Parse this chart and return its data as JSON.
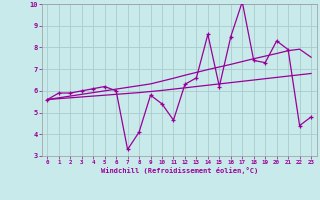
{
  "xlabel": "Windchill (Refroidissement éolien,°C)",
  "bg_color": "#c8eaea",
  "grid_color": "#aacccc",
  "line_color": "#990099",
  "x": [
    0,
    1,
    2,
    3,
    4,
    5,
    6,
    7,
    8,
    9,
    10,
    11,
    12,
    13,
    14,
    15,
    16,
    17,
    18,
    19,
    20,
    21,
    22,
    23
  ],
  "y_main": [
    5.6,
    5.9,
    5.9,
    6.0,
    6.1,
    6.2,
    6.0,
    3.3,
    4.1,
    5.8,
    5.4,
    4.65,
    6.3,
    6.6,
    8.6,
    6.2,
    8.5,
    10.1,
    7.4,
    7.3,
    8.3,
    7.9,
    4.4,
    4.8
  ],
  "y_trend1": [
    5.6,
    5.68,
    5.76,
    5.84,
    5.92,
    6.0,
    6.08,
    6.16,
    6.24,
    6.32,
    6.45,
    6.58,
    6.72,
    6.85,
    6.98,
    7.1,
    7.22,
    7.35,
    7.48,
    7.6,
    7.72,
    7.85,
    7.92,
    7.55
  ],
  "y_trend2": [
    5.6,
    5.64,
    5.68,
    5.72,
    5.76,
    5.8,
    5.84,
    5.88,
    5.92,
    5.97,
    6.02,
    6.08,
    6.14,
    6.2,
    6.26,
    6.32,
    6.38,
    6.44,
    6.5,
    6.56,
    6.62,
    6.68,
    6.74,
    6.8
  ],
  "ylim": [
    3,
    10
  ],
  "xlim": [
    -0.5,
    23.5
  ],
  "yticks": [
    3,
    4,
    5,
    6,
    7,
    8,
    9,
    10
  ],
  "xticks": [
    0,
    1,
    2,
    3,
    4,
    5,
    6,
    7,
    8,
    9,
    10,
    11,
    12,
    13,
    14,
    15,
    16,
    17,
    18,
    19,
    20,
    21,
    22,
    23
  ]
}
